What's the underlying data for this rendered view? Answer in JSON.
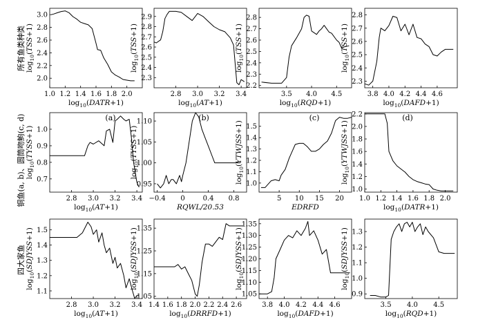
{
  "row_labels": [
    [
      "所有鱼类种类"
    ],
    [
      "铜鱼(a, b)、圆筒吻鮈(c, d)"
    ],
    [
      "四大家鱼"
    ]
  ],
  "panel_tags": [
    "(a)",
    "(b)",
    "(c)",
    "(d)"
  ],
  "chart_data": [
    {
      "type": "line",
      "row": 0,
      "col": 0,
      "xlabel": "log10(DATR+1)",
      "ylabel": "log10(TSS+1)",
      "xlim": [
        1.0,
        2.2
      ],
      "ylim": [
        1.85,
        3.1
      ],
      "xticks": [
        "1.0",
        "1.2",
        "1.4",
        "1.6",
        "1.8",
        "2.0"
      ],
      "xtick_values": [
        1.0,
        1.2,
        1.4,
        1.6,
        1.8,
        2.0
      ],
      "yticks": [
        "2.0",
        "2.2",
        "2.4",
        "2.6",
        "2.8",
        "3.0"
      ],
      "ytick_values": [
        2.0,
        2.2,
        2.4,
        2.6,
        2.8,
        3.0
      ],
      "series": [
        {
          "x": [
            1.02,
            1.05,
            1.1,
            1.15,
            1.2,
            1.25,
            1.3,
            1.35,
            1.4,
            1.45,
            1.5,
            1.55,
            1.6,
            1.62,
            1.66,
            1.7,
            1.75,
            1.8,
            1.85,
            1.9,
            1.95,
            2.0,
            2.05,
            2.1
          ],
          "y": [
            3.0,
            3.01,
            3.03,
            3.05,
            3.06,
            3.03,
            2.97,
            2.93,
            2.88,
            2.86,
            2.84,
            2.78,
            2.55,
            2.45,
            2.44,
            2.32,
            2.22,
            2.1,
            2.05,
            2.02,
            1.98,
            1.97,
            1.96,
            1.96
          ]
        }
      ]
    },
    {
      "type": "line",
      "row": 0,
      "col": 1,
      "xlabel": "log10(AT+1)",
      "ylabel": "log10(TSS+1)",
      "xlim": [
        2.6,
        3.45
      ],
      "ylim": [
        2.2,
        2.98
      ],
      "xticks": [
        "2.8",
        "3.0",
        "3.2",
        "3.4"
      ],
      "xtick_values": [
        2.8,
        3.0,
        3.2,
        3.4
      ],
      "yticks": [
        "2.3",
        "2.4",
        "2.5",
        "2.6",
        "2.7",
        "2.8",
        "2.9"
      ],
      "ytick_values": [
        2.3,
        2.4,
        2.5,
        2.6,
        2.7,
        2.8,
        2.9
      ],
      "series": [
        {
          "x": [
            2.6,
            2.62,
            2.66,
            2.68,
            2.7,
            2.72,
            2.74,
            2.8,
            2.85,
            2.9,
            2.95,
            3.0,
            3.05,
            3.1,
            3.15,
            3.2,
            3.25,
            3.3,
            3.33,
            3.36,
            3.38,
            3.4,
            3.43
          ],
          "y": [
            2.65,
            2.64,
            2.67,
            2.75,
            2.88,
            2.92,
            2.95,
            2.95,
            2.94,
            2.9,
            2.86,
            2.93,
            2.9,
            2.85,
            2.8,
            2.77,
            2.75,
            2.69,
            2.62,
            2.25,
            2.23,
            2.28,
            2.26
          ]
        }
      ]
    },
    {
      "type": "line",
      "row": 0,
      "col": 2,
      "xlabel": "log10(RQD+1)",
      "ylabel": "log10(TSS+1)",
      "xlim": [
        2.95,
        4.8
      ],
      "ylim": [
        2.18,
        2.88
      ],
      "xticks": [
        "3.5",
        "4.0",
        "4.5"
      ],
      "xtick_values": [
        3.5,
        4.0,
        4.5
      ],
      "yticks": [
        "2.2",
        "2.3",
        "2.4",
        "2.5",
        "2.6",
        "2.7",
        "2.8"
      ],
      "ytick_values": [
        2.2,
        2.3,
        2.4,
        2.5,
        2.6,
        2.7,
        2.8
      ],
      "series": [
        {
          "x": [
            3.0,
            3.2,
            3.4,
            3.5,
            3.55,
            3.6,
            3.7,
            3.8,
            3.85,
            3.9,
            3.95,
            4.0,
            4.1,
            4.15,
            4.2,
            4.25,
            4.3,
            4.35,
            4.4,
            4.5,
            4.55,
            4.6,
            4.65,
            4.75
          ],
          "y": [
            2.23,
            2.22,
            2.22,
            2.27,
            2.45,
            2.55,
            2.62,
            2.7,
            2.8,
            2.82,
            2.81,
            2.68,
            2.65,
            2.68,
            2.7,
            2.73,
            2.7,
            2.67,
            2.66,
            2.6,
            2.58,
            2.53,
            2.54,
            2.55
          ]
        }
      ]
    },
    {
      "type": "line",
      "row": 0,
      "col": 3,
      "xlabel": "log10(DAFD+1)",
      "ylabel": "log10(TSS+1)",
      "xlim": [
        3.7,
        4.85
      ],
      "ylim": [
        2.25,
        2.85
      ],
      "xticks": [
        "3.8",
        "4.0",
        "4.2",
        "4.4",
        "4.6"
      ],
      "xtick_values": [
        3.8,
        4.0,
        4.2,
        4.4,
        4.6
      ],
      "yticks": [
        "2.3",
        "2.4",
        "2.5",
        "2.6",
        "2.7",
        "2.8"
      ],
      "ytick_values": [
        2.3,
        2.4,
        2.5,
        2.6,
        2.7,
        2.8
      ],
      "series": [
        {
          "x": [
            3.7,
            3.75,
            3.8,
            3.85,
            3.88,
            3.9,
            3.95,
            4.0,
            4.05,
            4.1,
            4.15,
            4.2,
            4.25,
            4.3,
            4.35,
            4.4,
            4.45,
            4.5,
            4.55,
            4.6,
            4.65,
            4.7,
            4.8
          ],
          "y": [
            2.28,
            2.27,
            2.3,
            2.45,
            2.63,
            2.7,
            2.68,
            2.72,
            2.79,
            2.78,
            2.68,
            2.73,
            2.65,
            2.73,
            2.63,
            2.62,
            2.58,
            2.56,
            2.5,
            2.49,
            2.52,
            2.54,
            2.54
          ]
        }
      ]
    },
    {
      "type": "line",
      "row": 1,
      "col": 0,
      "xlabel": "log10(AT+1)",
      "ylabel": "log10(TYSS+1)",
      "xlim": [
        2.6,
        3.45
      ],
      "ylim": [
        0.62,
        1.1
      ],
      "xticks": [
        "2.8",
        "3.0",
        "3.2",
        "3.4"
      ],
      "xtick_values": [
        2.8,
        3.0,
        3.2,
        3.4
      ],
      "yticks": [
        "0.7",
        "0.8",
        "0.9",
        "1.0"
      ],
      "ytick_values": [
        0.7,
        0.8,
        0.9,
        1.0
      ],
      "series": [
        {
          "x": [
            2.6,
            2.92,
            2.95,
            2.97,
            3.0,
            3.05,
            3.1,
            3.12,
            3.15,
            3.18,
            3.2,
            3.22,
            3.25,
            3.28,
            3.3,
            3.33,
            3.35,
            3.37,
            3.4,
            3.42
          ],
          "y": [
            0.84,
            0.84,
            0.9,
            0.92,
            0.91,
            0.93,
            0.9,
            0.99,
            1.0,
            0.92,
            1.05,
            1.06,
            1.08,
            1.06,
            1.05,
            1.06,
            0.95,
            0.8,
            0.68,
            0.65
          ]
        }
      ]
    },
    {
      "type": "line",
      "row": 1,
      "col": 1,
      "xlabel": "RQWL/20.53",
      "ylabel": "log10(TYSS+1)",
      "xlim": [
        -0.45,
        1.0
      ],
      "ylim": [
        0.93,
        1.12
      ],
      "xticks": [
        "−0.4",
        "0",
        "0.4",
        "0.8"
      ],
      "xtick_values": [
        -0.4,
        0.0,
        0.4,
        0.8
      ],
      "yticks": [
        "0.95",
        "1.00",
        "1.05",
        "1.10"
      ],
      "ytick_values": [
        0.95,
        1.0,
        1.05,
        1.1
      ],
      "series": [
        {
          "x": [
            -0.4,
            -0.35,
            -0.3,
            -0.26,
            -0.22,
            -0.18,
            -0.15,
            -0.1,
            -0.05,
            -0.02,
            0.0,
            0.05,
            0.1,
            0.15,
            0.2,
            0.25,
            0.3,
            0.35,
            0.4,
            0.45,
            0.5,
            0.6,
            0.7,
            0.9
          ],
          "y": [
            0.95,
            0.94,
            0.95,
            0.97,
            0.95,
            0.96,
            0.96,
            0.95,
            0.97,
            0.955,
            0.97,
            1.0,
            1.05,
            1.1,
            1.12,
            1.11,
            1.08,
            1.06,
            1.04,
            1.02,
            1.0,
            1.0,
            1.0,
            1.0
          ]
        }
      ]
    },
    {
      "type": "line",
      "row": 1,
      "col": 2,
      "xlabel": "EDRFD",
      "ylabel": "log10(YTWJSS+1)",
      "xlim": [
        0,
        23
      ],
      "ylim": [
        0.92,
        1.62
      ],
      "xticks": [
        "5",
        "10",
        "15",
        "20"
      ],
      "xtick_values": [
        5,
        10,
        15,
        20
      ],
      "yticks": [
        "1.0",
        "1.1",
        "1.2",
        "1.3",
        "1.4",
        "1.5"
      ],
      "ytick_values": [
        1.0,
        1.1,
        1.2,
        1.3,
        1.4,
        1.5
      ],
      "series": [
        {
          "x": [
            0.5,
            1.5,
            3,
            4,
            5,
            5.5,
            6.5,
            7.5,
            8.5,
            9,
            10,
            11,
            12,
            13,
            14,
            15,
            16,
            17,
            18,
            19,
            20,
            21,
            22,
            23
          ],
          "y": [
            0.96,
            0.96,
            1.02,
            1.03,
            1.02,
            1.07,
            1.12,
            1.22,
            1.3,
            1.34,
            1.35,
            1.35,
            1.32,
            1.28,
            1.28,
            1.3,
            1.34,
            1.37,
            1.44,
            1.55,
            1.58,
            1.57,
            1.57,
            1.58
          ]
        }
      ]
    },
    {
      "type": "line",
      "row": 1,
      "col": 3,
      "xlabel": "log10(DATR+1)",
      "ylabel": "log10(YTWJSS+1)",
      "xlim": [
        1.0,
        2.15
      ],
      "ylim": [
        0.95,
        2.22
      ],
      "xticks": [
        "1.0",
        "1.2",
        "1.4",
        "1.6",
        "1.8",
        "2.0"
      ],
      "xtick_values": [
        1.0,
        1.2,
        1.4,
        1.6,
        1.8,
        2.0
      ],
      "yticks": [
        "1.0",
        "1.2",
        "1.4",
        "1.6",
        "1.8",
        "2.0",
        "2.2"
      ],
      "ytick_values": [
        1.0,
        1.2,
        1.4,
        1.6,
        1.8,
        2.0,
        2.2
      ],
      "series": [
        {
          "x": [
            1.0,
            1.05,
            1.1,
            1.15,
            1.2,
            1.25,
            1.28,
            1.3,
            1.35,
            1.4,
            1.45,
            1.5,
            1.55,
            1.6,
            1.65,
            1.7,
            1.75,
            1.8,
            1.85,
            1.9,
            1.95,
            2.0,
            2.05,
            2.1
          ],
          "y": [
            2.2,
            2.2,
            2.2,
            2.2,
            2.2,
            2.2,
            2.05,
            1.6,
            1.45,
            1.37,
            1.32,
            1.27,
            1.2,
            1.15,
            1.12,
            1.1,
            1.08,
            1.07,
            1.0,
            0.98,
            0.97,
            0.97,
            0.97,
            0.97
          ]
        }
      ]
    },
    {
      "type": "line",
      "row": 2,
      "col": 0,
      "xlabel": "log10(AT+1)",
      "ylabel": "log10(SDJYSS+1)",
      "xlim": [
        2.6,
        3.45
      ],
      "ylim": [
        1.05,
        1.57
      ],
      "xticks": [
        "2.8",
        "3.0",
        "3.2",
        "3.4"
      ],
      "xtick_values": [
        2.8,
        3.0,
        3.2,
        3.4
      ],
      "yticks": [
        "1.1",
        "1.2",
        "1.3",
        "1.4",
        "1.5"
      ],
      "ytick_values": [
        1.1,
        1.2,
        1.3,
        1.4,
        1.5
      ],
      "series": [
        {
          "x": [
            2.6,
            2.85,
            2.9,
            2.95,
            2.98,
            3.0,
            3.03,
            3.05,
            3.08,
            3.1,
            3.12,
            3.15,
            3.18,
            3.2,
            3.22,
            3.25,
            3.28,
            3.3,
            3.33,
            3.36,
            3.38,
            3.4,
            3.42
          ],
          "y": [
            1.45,
            1.45,
            1.48,
            1.55,
            1.52,
            1.47,
            1.5,
            1.42,
            1.48,
            1.4,
            1.35,
            1.38,
            1.28,
            1.32,
            1.25,
            1.28,
            1.2,
            1.12,
            1.18,
            1.1,
            1.05,
            1.07,
            1.07
          ]
        }
      ]
    },
    {
      "type": "line",
      "row": 2,
      "col": 1,
      "xlabel": "log10(DRRFD+1)",
      "ylabel": "log10(SDJYSS+1)",
      "xlim": [
        1.4,
        2.75
      ],
      "ylim": [
        1.04,
        1.39
      ],
      "xticks": [
        "1.4",
        "1.6",
        "1.8",
        "2.0",
        "2.2",
        "2.4",
        "2.6"
      ],
      "xtick_values": [
        1.4,
        1.6,
        1.8,
        2.0,
        2.2,
        2.4,
        2.6
      ],
      "yticks": [
        "1.05",
        "1.15",
        "1.25",
        "1.35"
      ],
      "ytick_values": [
        1.05,
        1.15,
        1.25,
        1.35
      ],
      "series": [
        {
          "x": [
            1.4,
            1.55,
            1.7,
            1.75,
            1.8,
            1.85,
            1.9,
            1.95,
            2.0,
            2.03,
            2.06,
            2.1,
            2.15,
            2.2,
            2.25,
            2.3,
            2.35,
            2.4,
            2.45,
            2.5,
            2.55,
            2.6,
            2.7
          ],
          "y": [
            1.18,
            1.18,
            1.18,
            1.19,
            1.17,
            1.18,
            1.15,
            1.12,
            1.06,
            1.05,
            1.1,
            1.2,
            1.28,
            1.28,
            1.27,
            1.29,
            1.31,
            1.3,
            1.37,
            1.36,
            1.36,
            1.36,
            1.36
          ]
        }
      ]
    },
    {
      "type": "line",
      "row": 2,
      "col": 2,
      "xlabel": "log10(DAFD+1)",
      "ylabel": "log10(SDJYSS+1)",
      "xlim": [
        3.7,
        4.8
      ],
      "ylim": [
        1.03,
        1.37
      ],
      "xticks": [
        "3.8",
        "4.0",
        "4.2",
        "4.4",
        "4.6"
      ],
      "xtick_values": [
        3.8,
        4.0,
        4.2,
        4.4,
        4.6
      ],
      "yticks": [
        "1.05",
        "1.10",
        "1.15",
        "1.20",
        "1.25",
        "1.30",
        "1.35"
      ],
      "ytick_values": [
        1.05,
        1.1,
        1.15,
        1.2,
        1.25,
        1.3,
        1.35
      ],
      "series": [
        {
          "x": [
            3.7,
            3.8,
            3.85,
            3.88,
            3.9,
            3.95,
            4.0,
            4.05,
            4.1,
            4.15,
            4.2,
            4.25,
            4.28,
            4.3,
            4.35,
            4.4,
            4.45,
            4.5,
            4.55,
            4.6,
            4.7,
            4.78
          ],
          "y": [
            1.05,
            1.05,
            1.06,
            1.12,
            1.2,
            1.24,
            1.28,
            1.3,
            1.29,
            1.32,
            1.3,
            1.33,
            1.36,
            1.3,
            1.32,
            1.28,
            1.22,
            1.24,
            1.14,
            1.14,
            1.14,
            1.14
          ]
        }
      ]
    },
    {
      "type": "line",
      "row": 2,
      "col": 3,
      "xlabel": "log10(RQD+1)",
      "ylabel": "log10(SDJYSS+1)",
      "xlim": [
        3.1,
        4.85
      ],
      "ylim": [
        0.87,
        1.38
      ],
      "xticks": [
        "3.5",
        "4.0",
        "4.5"
      ],
      "xtick_values": [
        3.5,
        4.0,
        4.5
      ],
      "yticks": [
        "0.9",
        "1.0",
        "1.1",
        "1.2",
        "1.3"
      ],
      "ytick_values": [
        0.9,
        1.0,
        1.1,
        1.2,
        1.3
      ],
      "series": [
        {
          "x": [
            3.2,
            3.3,
            3.4,
            3.5,
            3.55,
            3.6,
            3.65,
            3.7,
            3.75,
            3.8,
            3.85,
            3.9,
            3.95,
            4.0,
            4.05,
            4.1,
            4.15,
            4.2,
            4.25,
            4.3,
            4.4,
            4.5,
            4.6,
            4.8
          ],
          "y": [
            0.89,
            0.89,
            0.88,
            0.88,
            0.89,
            1.25,
            1.3,
            1.33,
            1.35,
            1.3,
            1.35,
            1.36,
            1.33,
            1.36,
            1.3,
            1.33,
            1.35,
            1.28,
            1.33,
            1.3,
            1.26,
            1.17,
            1.16,
            1.16
          ]
        }
      ]
    }
  ]
}
